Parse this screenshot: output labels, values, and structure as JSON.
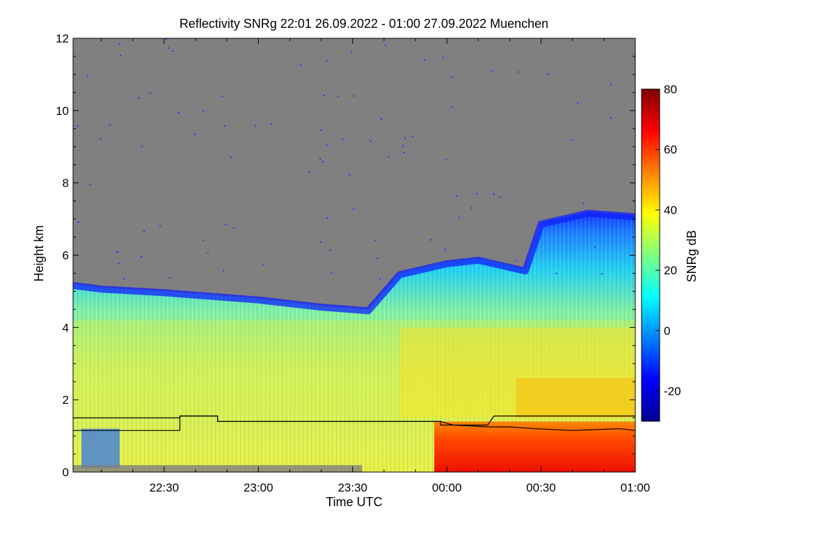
{
  "chart_data": {
    "type": "heatmap",
    "title": "Reflectivity SNRg   22:01 26.09.2022 - 01:00 27.09.2022 Muenchen",
    "xlabel": "Time UTC",
    "ylabel": "Height km",
    "x_range": [
      "22:01",
      "01:00"
    ],
    "x_ticks": [
      "22:30",
      "23:00",
      "23:30",
      "00:00",
      "00:30",
      "01:00"
    ],
    "y_range": [
      0,
      12
    ],
    "y_ticks": [
      0,
      2,
      4,
      6,
      8,
      10,
      12
    ],
    "colorbar": {
      "label": "SNRg dB",
      "range": [
        -30,
        80
      ],
      "ticks": [
        -20,
        0,
        20,
        40,
        60,
        80
      ],
      "colormap": "jet"
    },
    "background_color": "#808080",
    "cloud_top_km": [
      {
        "time": "22:01",
        "height": 5.2
      },
      {
        "time": "22:10",
        "height": 5.1
      },
      {
        "time": "22:30",
        "height": 5.0
      },
      {
        "time": "23:00",
        "height": 4.8
      },
      {
        "time": "23:20",
        "height": 4.6
      },
      {
        "time": "23:35",
        "height": 4.5
      },
      {
        "time": "23:45",
        "height": 5.5
      },
      {
        "time": "00:00",
        "height": 5.8
      },
      {
        "time": "00:10",
        "height": 5.9
      },
      {
        "time": "00:25",
        "height": 5.6
      },
      {
        "time": "00:30",
        "height": 6.9
      },
      {
        "time": "00:45",
        "height": 7.2
      },
      {
        "time": "01:00",
        "height": 7.1
      }
    ],
    "series": [
      {
        "points": [
          {
            "time": "22:01",
            "height": 1.5
          },
          {
            "time": "22:35",
            "height": 1.5
          },
          {
            "time": "22:35",
            "height": 1.55
          },
          {
            "time": "22:47",
            "height": 1.55
          },
          {
            "time": "22:47",
            "height": 1.4
          },
          {
            "time": "23:58",
            "height": 1.4
          },
          {
            "time": "23:58",
            "height": 1.3
          },
          {
            "time": "00:13",
            "height": 1.3
          },
          {
            "time": "00:15",
            "height": 1.55
          },
          {
            "time": "01:00",
            "height": 1.55
          }
        ]
      },
      {
        "points": [
          {
            "time": "22:01",
            "height": 1.15
          },
          {
            "time": "22:35",
            "height": 1.15
          },
          {
            "time": "22:35",
            "height": 1.55
          },
          {
            "time": "22:47",
            "height": 1.55
          },
          {
            "time": "22:47",
            "height": 1.4
          },
          {
            "time": "23:58",
            "height": 1.4
          },
          {
            "time": "00:02",
            "height": 1.3
          },
          {
            "time": "00:13",
            "height": 1.25
          },
          {
            "time": "00:20",
            "height": 1.25
          },
          {
            "time": "00:28",
            "height": 1.2
          },
          {
            "time": "00:40",
            "height": 1.15
          },
          {
            "time": "00:55",
            "height": 1.2
          },
          {
            "time": "01:00",
            "height": 1.15
          }
        ]
      }
    ]
  }
}
